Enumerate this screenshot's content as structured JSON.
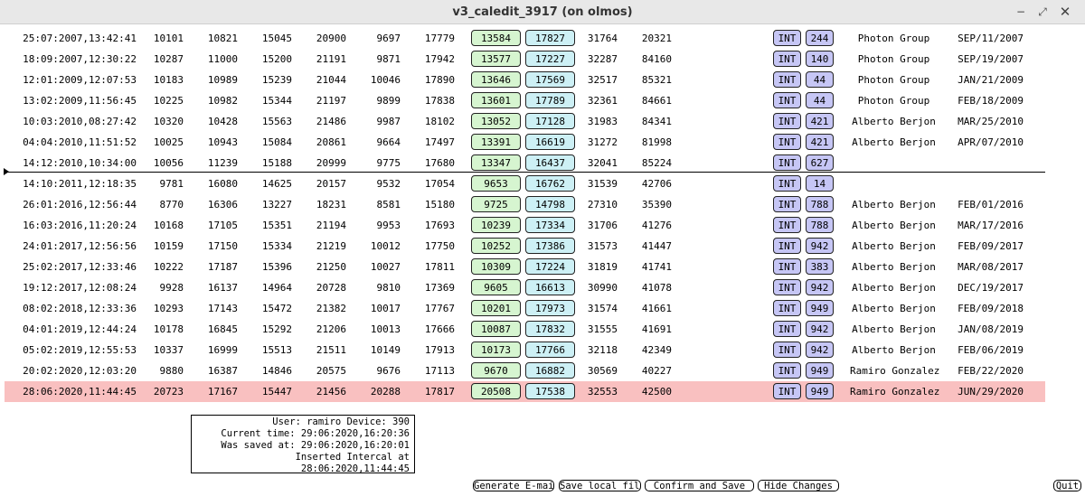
{
  "window": {
    "title": "v3_caledit_3917 (on olmos)"
  },
  "table": {
    "rows": [
      [
        "25:07:2007,13:42:41",
        "10101",
        "10821",
        "15045",
        "20900",
        "9697",
        "17779",
        "13584",
        "17827",
        "31764",
        "20321",
        "INT",
        "244",
        "Photon Group",
        "SEP/11/2007"
      ],
      [
        "18:09:2007,12:30:22",
        "10287",
        "11000",
        "15200",
        "21191",
        "9871",
        "17942",
        "13577",
        "17227",
        "32287",
        "84160",
        "INT",
        "140",
        "Photon Group",
        "SEP/19/2007"
      ],
      [
        "12:01:2009,12:07:53",
        "10183",
        "10989",
        "15239",
        "21044",
        "10046",
        "17890",
        "13646",
        "17569",
        "32517",
        "85321",
        "INT",
        "44",
        "Photon Group",
        "JAN/21/2009"
      ],
      [
        "13:02:2009,11:56:45",
        "10225",
        "10982",
        "15344",
        "21197",
        "9899",
        "17838",
        "13601",
        "17789",
        "32361",
        "84661",
        "INT",
        "44",
        "Photon Group",
        "FEB/18/2009"
      ],
      [
        "10:03:2010,08:27:42",
        "10320",
        "10428",
        "15563",
        "21486",
        "9987",
        "18102",
        "13052",
        "17128",
        "31983",
        "84341",
        "INT",
        "421",
        "Alberto Berjon",
        "MAR/25/2010"
      ],
      [
        "04:04:2010,11:51:52",
        "10025",
        "10943",
        "15084",
        "20861",
        "9664",
        "17497",
        "13391",
        "16619",
        "31272",
        "81998",
        "INT",
        "421",
        "Alberto Berjon",
        "APR/07/2010"
      ],
      [
        "14:12:2010,10:34:00",
        "10056",
        "11239",
        "15188",
        "20999",
        "9775",
        "17680",
        "13347",
        "16437",
        "32041",
        "85224",
        "INT",
        "627",
        "",
        ""
      ],
      [
        "14:10:2011,12:18:35",
        "9781",
        "16080",
        "14625",
        "20157",
        "9532",
        "17054",
        "9653",
        "16762",
        "31539",
        "42706",
        "INT",
        "14",
        "",
        ""
      ],
      [
        "26:01:2016,12:56:44",
        "8770",
        "16306",
        "13227",
        "18231",
        "8581",
        "15180",
        "9725",
        "14798",
        "27310",
        "35390",
        "INT",
        "788",
        "Alberto Berjon",
        "FEB/01/2016"
      ],
      [
        "16:03:2016,11:20:24",
        "10168",
        "17105",
        "15351",
        "21194",
        "9953",
        "17693",
        "10239",
        "17334",
        "31706",
        "41276",
        "INT",
        "788",
        "Alberto Berjon",
        "MAR/17/2016"
      ],
      [
        "24:01:2017,12:56:56",
        "10159",
        "17150",
        "15334",
        "21219",
        "10012",
        "17750",
        "10252",
        "17386",
        "31573",
        "41447",
        "INT",
        "942",
        "Alberto Berjon",
        "FEB/09/2017"
      ],
      [
        "25:02:2017,12:33:46",
        "10222",
        "17187",
        "15396",
        "21250",
        "10027",
        "17811",
        "10309",
        "17224",
        "31819",
        "41741",
        "INT",
        "383",
        "Alberto Berjon",
        "MAR/08/2017"
      ],
      [
        "19:12:2017,12:08:24",
        "9928",
        "16137",
        "14964",
        "20728",
        "9810",
        "17369",
        "9605",
        "16613",
        "30990",
        "41078",
        "INT",
        "942",
        "Alberto Berjon",
        "DEC/19/2017"
      ],
      [
        "08:02:2018,12:33:36",
        "10293",
        "17143",
        "15472",
        "21382",
        "10017",
        "17767",
        "10201",
        "17973",
        "31574",
        "41661",
        "INT",
        "949",
        "Alberto Berjon",
        "FEB/09/2018"
      ],
      [
        "04:01:2019,12:44:24",
        "10178",
        "16845",
        "15292",
        "21206",
        "10013",
        "17666",
        "10087",
        "17832",
        "31555",
        "41691",
        "INT",
        "942",
        "Alberto Berjon",
        "JAN/08/2019"
      ],
      [
        "05:02:2019,12:55:53",
        "10337",
        "16999",
        "15513",
        "21511",
        "10149",
        "17913",
        "10173",
        "17766",
        "32118",
        "42349",
        "INT",
        "942",
        "Alberto Berjon",
        "FEB/06/2019"
      ],
      [
        "20:02:2020,12:03:20",
        "9880",
        "16387",
        "14846",
        "20575",
        "9676",
        "17113",
        "9670",
        "16882",
        "30569",
        "40227",
        "INT",
        "949",
        "Ramiro Gonzalez",
        "FEB/22/2020"
      ],
      [
        "28:06:2020,11:44:45",
        "20723",
        "17167",
        "15447",
        "21456",
        "20288",
        "17817",
        "20508",
        "17538",
        "32553",
        "42500",
        "INT",
        "949",
        "Ramiro Gonzalez",
        "JUN/29/2020"
      ]
    ]
  },
  "info": {
    "user_line": "User: ramiro Device: 390",
    "current_time": "Current time: 29:06:2020,16:20:36",
    "saved_at": "Was saved at: 29:06:2020,16:20:01",
    "inserted": "Inserted Intercal at 28:06:2020,11:44:45"
  },
  "buttons": {
    "generate_email": "Generate E-mail",
    "save_local": "Save local file",
    "confirm_save": "Confirm and Save",
    "hide_changes": "Hide Changes",
    "quit": "Quit"
  },
  "colors": {
    "highlight_row": "#f9c0c0",
    "green_box": "#d6f5d0",
    "cyan_box": "#cdf0f5",
    "blue_box": "#c6c6f5"
  },
  "highlight_row_index": 17,
  "separator_after_row_index": 6
}
